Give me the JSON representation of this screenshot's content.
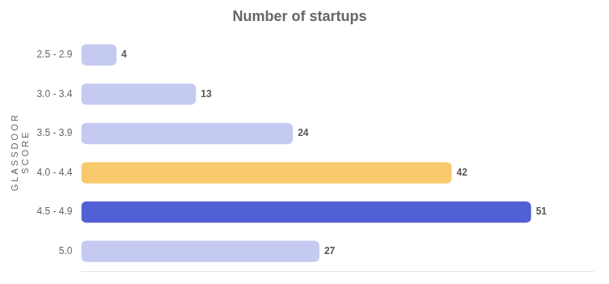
{
  "chart_data": {
    "type": "bar",
    "orientation": "horizontal",
    "title": "Number of startups",
    "ylabel": [
      "G L A S S D O O R",
      "S C O R E"
    ],
    "categories": [
      "2.5 - 2.9",
      "3.0 - 3.4",
      "3.5 - 3.9",
      "4.0 - 4.4",
      "4.5 - 4.9",
      "5.0"
    ],
    "values": [
      4,
      13,
      24,
      42,
      51,
      27
    ],
    "colors": [
      "#c5caf0",
      "#c5caf0",
      "#c5caf0",
      "#f9c96d",
      "#5160d4",
      "#c5caf0"
    ],
    "xlim": [
      0,
      58
    ],
    "data_labels": true,
    "tick_labels": "y",
    "grid": false
  }
}
